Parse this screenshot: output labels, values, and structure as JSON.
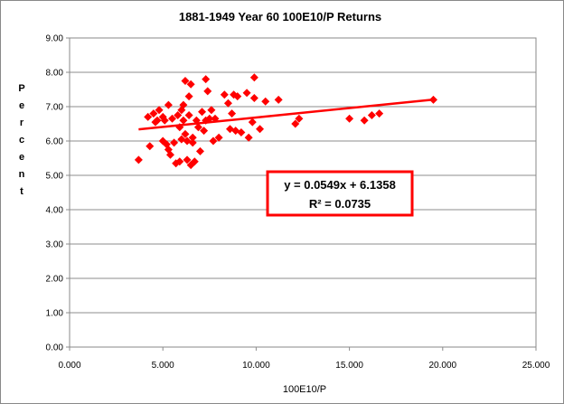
{
  "chart_data": {
    "type": "scatter",
    "title": "1881-1949 Year 60 100E10/P Returns",
    "xlabel": "100E10/P",
    "ylabel": "Percent",
    "xlim": [
      0,
      25
    ],
    "ylim": [
      0,
      9
    ],
    "x_ticks": [
      "0.000",
      "5.000",
      "10.000",
      "15.000",
      "20.000",
      "25.000"
    ],
    "y_ticks": [
      "0.00",
      "1.00",
      "2.00",
      "3.00",
      "4.00",
      "5.00",
      "6.00",
      "7.00",
      "8.00",
      "9.00"
    ],
    "grid": "horizontal",
    "marker": "diamond",
    "marker_color": "#ff0000",
    "trendline": {
      "type": "linear",
      "slope": 0.0549,
      "intercept": 6.1358,
      "x_range": [
        3.7,
        19.6
      ],
      "color": "#ff0000"
    },
    "annotation": {
      "line1": "y = 0.0549x + 6.1358",
      "line2": "R² = 0.0735",
      "border_color": "#ff0000"
    },
    "series": [
      {
        "points": [
          [
            3.7,
            5.45
          ],
          [
            4.2,
            6.7
          ],
          [
            4.3,
            5.85
          ],
          [
            4.5,
            6.8
          ],
          [
            4.6,
            6.55
          ],
          [
            4.7,
            6.6
          ],
          [
            4.8,
            6.9
          ],
          [
            5.0,
            6.7
          ],
          [
            5.0,
            6.0
          ],
          [
            5.1,
            6.6
          ],
          [
            5.2,
            5.9
          ],
          [
            5.3,
            7.05
          ],
          [
            5.3,
            5.75
          ],
          [
            5.4,
            5.6
          ],
          [
            5.5,
            6.65
          ],
          [
            5.6,
            5.95
          ],
          [
            5.7,
            5.35
          ],
          [
            5.8,
            6.75
          ],
          [
            5.9,
            6.4
          ],
          [
            5.9,
            5.4
          ],
          [
            6.0,
            6.05
          ],
          [
            6.0,
            6.9
          ],
          [
            6.1,
            7.05
          ],
          [
            6.1,
            6.6
          ],
          [
            6.2,
            7.75
          ],
          [
            6.2,
            6.2
          ],
          [
            6.3,
            6.0
          ],
          [
            6.3,
            5.45
          ],
          [
            6.4,
            6.75
          ],
          [
            6.4,
            7.3
          ],
          [
            6.5,
            7.65
          ],
          [
            6.5,
            5.3
          ],
          [
            6.6,
            6.1
          ],
          [
            6.6,
            5.95
          ],
          [
            6.7,
            5.4
          ],
          [
            6.8,
            6.6
          ],
          [
            6.9,
            6.4
          ],
          [
            7.0,
            5.7
          ],
          [
            7.1,
            6.85
          ],
          [
            7.2,
            6.3
          ],
          [
            7.3,
            7.8
          ],
          [
            7.3,
            6.6
          ],
          [
            7.4,
            7.45
          ],
          [
            7.5,
            6.65
          ],
          [
            7.6,
            6.9
          ],
          [
            7.7,
            6.0
          ],
          [
            7.8,
            6.65
          ],
          [
            8.0,
            6.1
          ],
          [
            8.3,
            7.35
          ],
          [
            8.5,
            7.1
          ],
          [
            8.6,
            6.35
          ],
          [
            8.7,
            6.8
          ],
          [
            8.8,
            7.35
          ],
          [
            8.9,
            6.3
          ],
          [
            9.0,
            7.3
          ],
          [
            9.2,
            6.25
          ],
          [
            9.5,
            7.4
          ],
          [
            9.6,
            6.1
          ],
          [
            9.8,
            6.55
          ],
          [
            9.9,
            7.25
          ],
          [
            9.9,
            7.85
          ],
          [
            10.2,
            6.35
          ],
          [
            10.5,
            7.15
          ],
          [
            11.2,
            7.2
          ],
          [
            12.1,
            6.5
          ],
          [
            12.3,
            6.65
          ],
          [
            15.0,
            6.65
          ],
          [
            15.8,
            6.6
          ],
          [
            16.2,
            6.75
          ],
          [
            16.6,
            6.8
          ],
          [
            19.5,
            7.2
          ]
        ]
      }
    ]
  }
}
